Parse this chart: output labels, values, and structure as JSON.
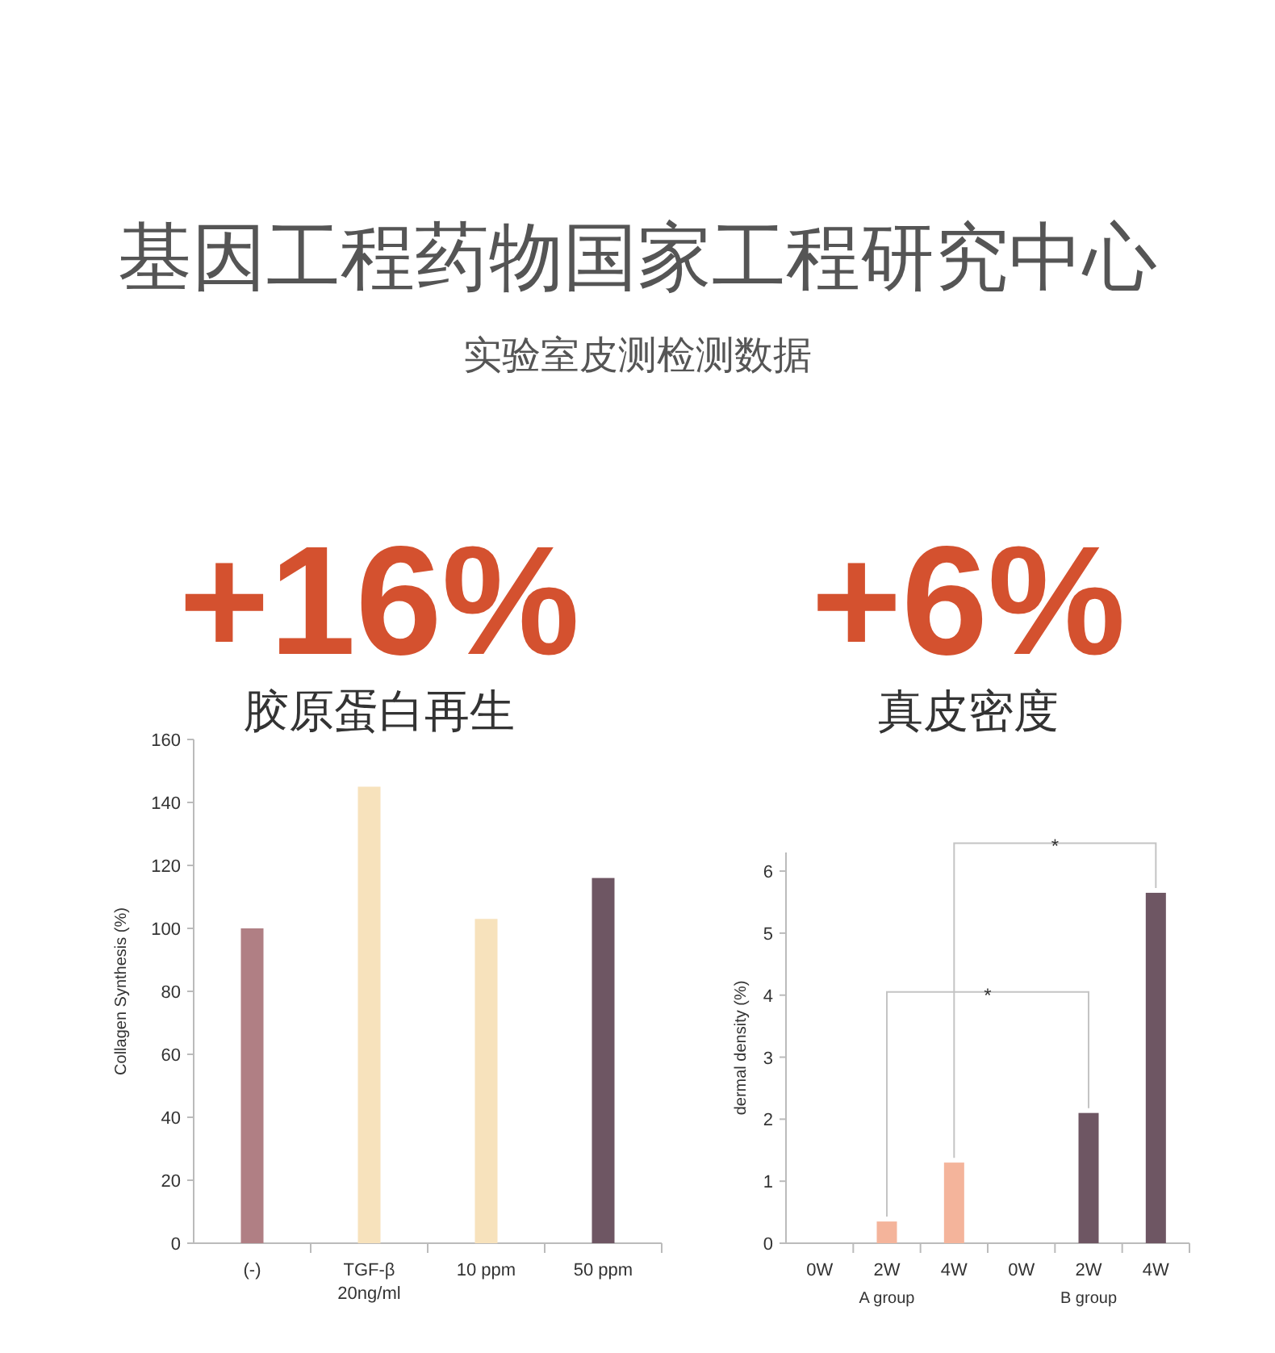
{
  "chart_data": [
    {
      "type": "other",
      "title": "基因工程药物国家工程研究中心",
      "subtitle": "实验室皮测检测数据"
    },
    {
      "type": "bar",
      "title": "胶原蛋白再生",
      "annotations": [
        "+16%"
      ],
      "ylabel": "Collagen Synthesis (%)",
      "categories": [
        "(-)",
        "TGF-β\n20ng/ml",
        "10 ppm",
        "50 ppm"
      ],
      "values": [
        100,
        145,
        103,
        116
      ],
      "colors": [
        "#b07f84",
        "#f7e2bc",
        "#f7e2bc",
        "#6e5663"
      ],
      "ylim": [
        0,
        160
      ],
      "yticks": [
        0,
        20,
        40,
        60,
        80,
        100,
        120,
        140,
        160
      ]
    },
    {
      "type": "bar",
      "title": "真皮密度",
      "annotations": [
        "+6%",
        "*",
        "*",
        "A group",
        "B group"
      ],
      "ylabel": "dermal density (%)",
      "categories": [
        "0W",
        "2W",
        "4W",
        "0W",
        "2W",
        "4W"
      ],
      "values": [
        null,
        0.35,
        1.3,
        null,
        2.1,
        5.65
      ],
      "colors": [
        null,
        "#f4b49b",
        "#f4b49b",
        null,
        "#6e5663",
        "#6e5663"
      ],
      "ylim": [
        0,
        6.3
      ],
      "yticks": [
        0,
        1,
        2,
        3,
        4,
        5,
        6
      ]
    }
  ]
}
